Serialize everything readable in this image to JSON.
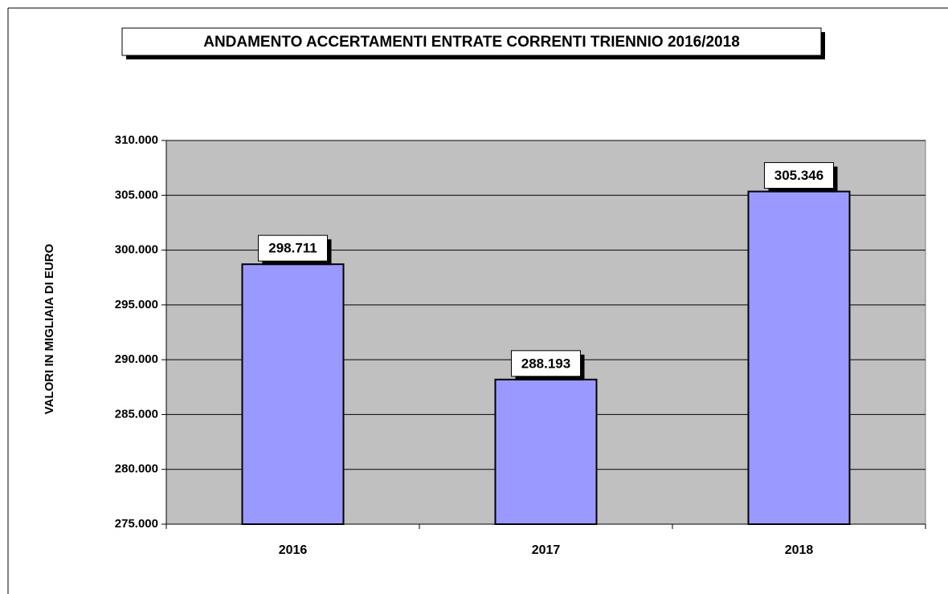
{
  "chart_data": {
    "type": "bar",
    "title": "ANDAMENTO ACCERTAMENTI ENTRATE CORRENTI TRIENNIO 2016/2018",
    "y_label": "VALORI IN MIGLIAIA DI EURO",
    "categories": [
      "2016",
      "2017",
      "2018"
    ],
    "values": [
      298711,
      288193,
      305346
    ],
    "value_labels": [
      "298.711",
      "288.193",
      "305.346"
    ],
    "color": "#9999ff",
    "ylim": [
      275000,
      310000
    ],
    "yticks": [
      {
        "value": 275000,
        "label": "275.000"
      },
      {
        "value": 280000,
        "label": "280.000"
      },
      {
        "value": 285000,
        "label": "285.000"
      },
      {
        "value": 290000,
        "label": "290.000"
      },
      {
        "value": 295000,
        "label": "295.000"
      },
      {
        "value": 300000,
        "label": "300.000"
      },
      {
        "value": 305000,
        "label": "305.000"
      },
      {
        "value": 310000,
        "label": "310.000"
      }
    ],
    "grid": true
  }
}
